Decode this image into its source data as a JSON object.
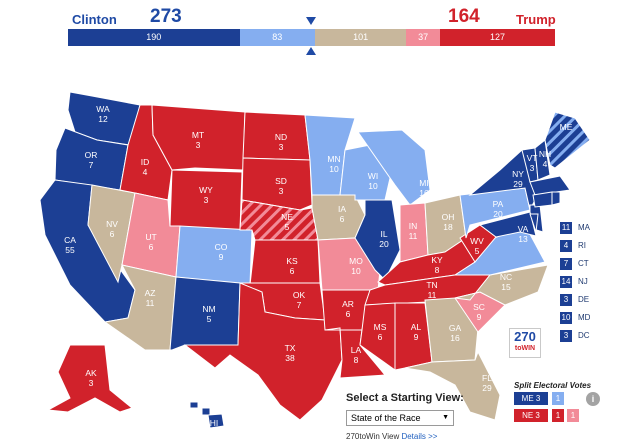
{
  "header": {
    "clinton_label": "Clinton",
    "clinton_total": "273",
    "trump_total": "164",
    "trump_label": "Trump"
  },
  "bar": {
    "solid_dem": "190",
    "likely_dem": "83",
    "tossup": "101",
    "likely_rep": "37",
    "solid_rep": "127"
  },
  "colors": {
    "solid_dem": "#1c3f94",
    "likely_dem": "#85aef0",
    "tossup": "#c8b79c",
    "likely_rep": "#f28b98",
    "solid_rep": "#d1222b"
  },
  "states": {
    "WA": "12",
    "OR": "7",
    "CA": "55",
    "NV": "6",
    "ID": "4",
    "MT": "3",
    "WY": "3",
    "UT": "6",
    "AZ": "11",
    "CO": "9",
    "NM": "5",
    "ND": "3",
    "SD": "3",
    "NE": "5",
    "KS": "6",
    "OK": "7",
    "TX": "38",
    "MN": "10",
    "IA": "6",
    "MO": "10",
    "AR": "6",
    "LA": "8",
    "WI": "10",
    "IL": "20",
    "MI": "16",
    "IN": "11",
    "OH": "18",
    "KY": "8",
    "TN": "11",
    "MS": "6",
    "AL": "9",
    "GA": "16",
    "FL": "29",
    "SC": "9",
    "NC": "15",
    "VA": "13",
    "WV": "5",
    "PA": "20",
    "NY": "29",
    "VT": "3",
    "NH": "4",
    "ME": "",
    "AK": "3",
    "HI": "4"
  },
  "northeast": [
    {
      "num": "11",
      "abbr": "MA"
    },
    {
      "num": "4",
      "abbr": "RI"
    },
    {
      "num": "7",
      "abbr": "CT"
    },
    {
      "num": "14",
      "abbr": "NJ"
    },
    {
      "num": "3",
      "abbr": "DE"
    },
    {
      "num": "10",
      "abbr": "MD"
    },
    {
      "num": "3",
      "abbr": "DC"
    }
  ],
  "logo": {
    "num": "270",
    "sub": "toWIN"
  },
  "split": {
    "title": "Split Electoral Votes",
    "me_label": "ME 3",
    "me_value": "1",
    "ne_label": "NE 3",
    "ne_value": "1",
    "info_icon": "i"
  },
  "starting_view": {
    "title": "Select a Starting View:",
    "selected": "State of the Race",
    "caret": "▼",
    "footer": "270toWin View ",
    "footer_link": "Details >>"
  }
}
